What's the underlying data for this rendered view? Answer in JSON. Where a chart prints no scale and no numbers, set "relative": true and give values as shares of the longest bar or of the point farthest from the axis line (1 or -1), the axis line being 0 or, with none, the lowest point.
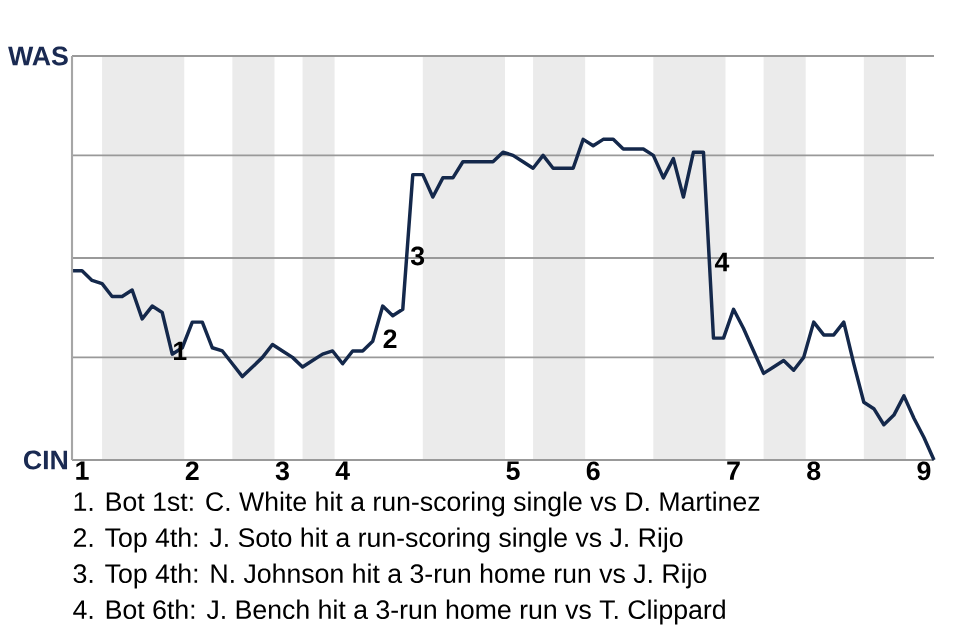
{
  "chart_data": {
    "type": "line",
    "color": "#14284b",
    "relative": true,
    "categories": [
      null,
      "1",
      null,
      null,
      null,
      null,
      null,
      null,
      null,
      null,
      null,
      null,
      "2",
      null,
      null,
      null,
      null,
      null,
      null,
      null,
      null,
      "3",
      null,
      null,
      null,
      null,
      null,
      "4",
      null,
      null,
      null,
      null,
      null,
      null,
      null,
      null,
      null,
      null,
      null,
      null,
      null,
      null,
      null,
      null,
      "5",
      null,
      null,
      null,
      null,
      null,
      null,
      null,
      "6",
      null,
      null,
      null,
      null,
      null,
      null,
      null,
      null,
      null,
      null,
      null,
      null,
      null,
      "7",
      null,
      null,
      null,
      null,
      null,
      null,
      null,
      "8",
      null,
      null,
      null,
      null,
      null,
      null,
      null,
      null,
      null,
      null,
      "9",
      null
    ],
    "values": [
      0.59,
      0.59,
      0.56,
      0.55,
      0.51,
      0.51,
      0.53,
      0.44,
      0.48,
      0.46,
      0.33,
      0.35,
      0.43,
      0.43,
      0.35,
      0.34,
      0.3,
      0.26,
      0.29,
      0.32,
      0.36,
      0.34,
      0.32,
      0.29,
      0.31,
      0.33,
      0.34,
      0.3,
      0.34,
      0.34,
      0.37,
      0.48,
      0.45,
      0.47,
      0.89,
      0.89,
      0.82,
      0.88,
      0.88,
      0.93,
      0.93,
      0.93,
      0.93,
      0.96,
      0.95,
      0.93,
      0.91,
      0.95,
      0.91,
      0.91,
      0.91,
      1,
      0.98,
      1,
      1,
      0.97,
      0.97,
      0.97,
      0.95,
      0.88,
      0.94,
      0.82,
      0.96,
      0.96,
      0.38,
      0.38,
      0.47,
      0.41,
      0.34,
      0.27,
      0.29,
      0.31,
      0.28,
      0.32,
      0.43,
      0.39,
      0.39,
      0.43,
      0.3,
      0.18,
      0.16,
      0.11,
      0.14,
      0.2,
      0.13,
      0.07,
      0
    ],
    "ref_lines": [
      {
        "axis": "y",
        "value": 0,
        "label": "CIN",
        "color": "#999999"
      },
      {
        "axis": "y",
        "value": 0.32,
        "color": "#999999"
      },
      {
        "axis": "y",
        "value": 0.63,
        "color": "#999999"
      },
      {
        "axis": "y",
        "value": 0.95,
        "color": "#999999"
      },
      {
        "axis": "y",
        "value": 1.26,
        "label": "WAS",
        "color": "#999999"
      }
    ],
    "annotations": [
      "1",
      "2",
      "3",
      "4",
      "1. Bot 1st: C. White hit a run-scoring single vs D. Martinez",
      "2. Top 4th: J. Soto hit a run-scoring single vs J. Rijo",
      "3. Top 4th: N. Johnson hit a 3-run home run vs J. Rijo",
      "4. Bot 6th: J. Bench hit a 3-run home run vs T. Clippard"
    ]
  }
}
